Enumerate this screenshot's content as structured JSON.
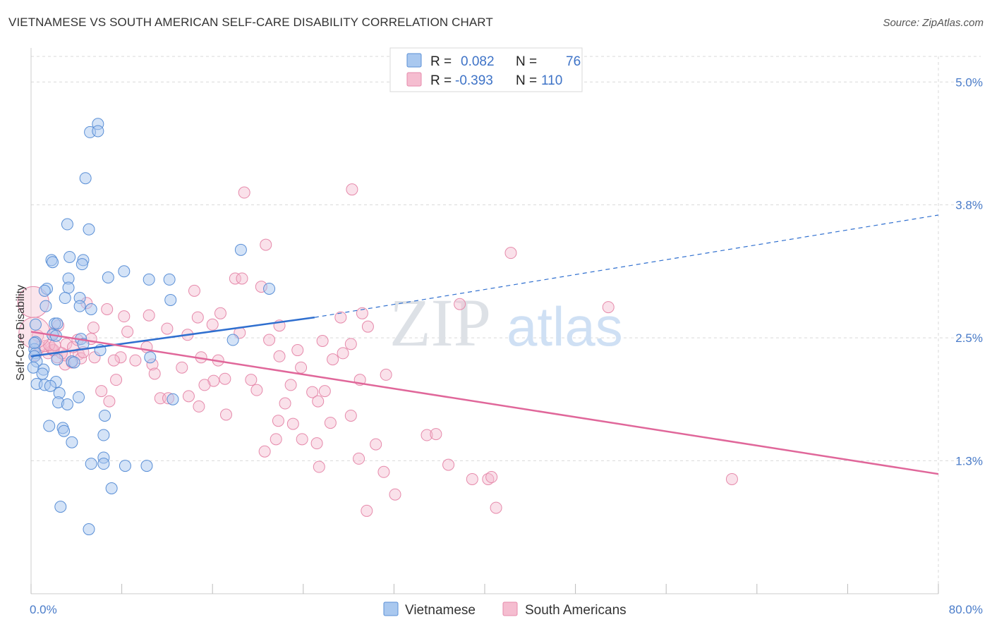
{
  "title": "VIETNAMESE VS SOUTH AMERICAN SELF-CARE DISABILITY CORRELATION CHART",
  "source": "Source: ZipAtlas.com",
  "watermark": {
    "zip": "ZIP",
    "atlas": "atlas"
  },
  "colors": {
    "blue_fill": "#a9c8ef",
    "blue_stroke": "#5a8fd6",
    "blue_line": "#2f6fcf",
    "pink_fill": "#f5bdd0",
    "pink_stroke": "#e68aab",
    "pink_line": "#e0679a",
    "grid": "#d9d9d9",
    "axis_text": "#4a7cc9"
  },
  "legend": {
    "rows": [
      {
        "r_label": "R =",
        "r_value": "0.082",
        "n_label": "N =",
        "n_value": "76"
      },
      {
        "r_label": "R =",
        "r_value": "-0.393",
        "n_label": "N =",
        "n_value": "110"
      }
    ]
  },
  "chart_data": {
    "type": "scatter",
    "title": "VIETNAMESE VS SOUTH AMERICAN SELF-CARE DISABILITY CORRELATION CHART",
    "xlabel": "",
    "ylabel": "Self-Care Disability",
    "xlim": [
      0,
      80
    ],
    "ylim": [
      0,
      5.25
    ],
    "x_tick_labels": [
      "0.0%",
      "80.0%"
    ],
    "y_ticks": [
      1.3,
      2.5,
      3.8,
      5.0
    ],
    "y_tick_labels": [
      "1.3%",
      "2.5%",
      "3.8%",
      "5.0%"
    ],
    "grid": true,
    "legend_position": "top-center",
    "series": [
      {
        "name": "Vietnamese",
        "trend": {
          "x0": 0,
          "y0": 2.32,
          "x1": 25,
          "y1": 2.7,
          "dashed_to_x": 80,
          "dashed_to_y": 3.7
        },
        "points": [
          [
            5.9,
            4.59
          ],
          [
            5.2,
            4.51
          ],
          [
            5.9,
            4.52
          ],
          [
            4.8,
            4.06
          ],
          [
            3.2,
            3.61
          ],
          [
            5.1,
            3.56
          ],
          [
            1.8,
            3.26
          ],
          [
            1.9,
            3.24
          ],
          [
            3.4,
            3.29
          ],
          [
            4.6,
            3.26
          ],
          [
            4.5,
            3.22
          ],
          [
            8.2,
            3.15
          ],
          [
            6.8,
            3.09
          ],
          [
            10.4,
            3.07
          ],
          [
            12.2,
            3.07
          ],
          [
            3.3,
            3.08
          ],
          [
            1.4,
            2.98
          ],
          [
            1.2,
            2.96
          ],
          [
            3.3,
            2.99
          ],
          [
            3.0,
            2.89
          ],
          [
            4.3,
            2.89
          ],
          [
            12.3,
            2.87
          ],
          [
            1.3,
            2.81
          ],
          [
            4.3,
            2.81
          ],
          [
            5.3,
            2.78
          ],
          [
            0.4,
            2.63
          ],
          [
            2.1,
            2.64
          ],
          [
            2.3,
            2.64
          ],
          [
            1.9,
            2.53
          ],
          [
            2.2,
            2.52
          ],
          [
            4.4,
            2.49
          ],
          [
            0.4,
            2.46
          ],
          [
            4.6,
            2.44
          ],
          [
            0.3,
            2.39
          ],
          [
            0.4,
            2.35
          ],
          [
            6.1,
            2.38
          ],
          [
            0.3,
            2.32
          ],
          [
            0.5,
            2.27
          ],
          [
            2.3,
            2.29
          ],
          [
            3.6,
            2.27
          ],
          [
            3.8,
            2.26
          ],
          [
            10.5,
            2.31
          ],
          [
            0.2,
            2.21
          ],
          [
            1.1,
            2.19
          ],
          [
            1.0,
            2.15
          ],
          [
            2.2,
            2.07
          ],
          [
            0.5,
            2.05
          ],
          [
            1.2,
            2.04
          ],
          [
            1.7,
            2.03
          ],
          [
            2.5,
            1.96
          ],
          [
            4.2,
            1.92
          ],
          [
            12.5,
            1.9
          ],
          [
            2.4,
            1.87
          ],
          [
            3.2,
            1.85
          ],
          [
            6.5,
            1.74
          ],
          [
            1.6,
            1.64
          ],
          [
            2.8,
            1.62
          ],
          [
            2.9,
            1.59
          ],
          [
            6.4,
            1.55
          ],
          [
            3.6,
            1.48
          ],
          [
            6.4,
            1.33
          ],
          [
            5.3,
            1.27
          ],
          [
            6.4,
            1.27
          ],
          [
            8.3,
            1.25
          ],
          [
            10.2,
            1.25
          ],
          [
            7.1,
            1.03
          ],
          [
            2.6,
            0.85
          ],
          [
            5.1,
            0.63
          ],
          [
            18.5,
            3.36
          ],
          [
            17.8,
            2.48
          ],
          [
            21.0,
            2.98
          ],
          [
            0.3,
            2.45
          ]
        ]
      },
      {
        "name": "South Americans",
        "trend": {
          "x0": 0,
          "y0": 2.56,
          "x1": 80,
          "y1": 1.17
        },
        "points": [
          [
            28.3,
            3.95
          ],
          [
            18.8,
            3.92
          ],
          [
            20.7,
            3.41
          ],
          [
            42.3,
            3.33
          ],
          [
            18.0,
            3.08
          ],
          [
            18.6,
            3.08
          ],
          [
            14.4,
            2.96
          ],
          [
            20.3,
            3.0
          ],
          [
            37.8,
            2.83
          ],
          [
            50.9,
            2.8
          ],
          [
            6.7,
            2.78
          ],
          [
            4.9,
            2.84
          ],
          [
            8.2,
            2.71
          ],
          [
            10.4,
            2.72
          ],
          [
            14.7,
            2.7
          ],
          [
            16.7,
            2.74
          ],
          [
            27.3,
            2.7
          ],
          [
            29.2,
            2.74
          ],
          [
            16.0,
            2.63
          ],
          [
            21.9,
            2.62
          ],
          [
            29.7,
            2.61
          ],
          [
            12.0,
            2.59
          ],
          [
            8.5,
            2.56
          ],
          [
            13.8,
            2.53
          ],
          [
            18.4,
            2.55
          ],
          [
            21.0,
            2.48
          ],
          [
            25.7,
            2.47
          ],
          [
            28.2,
            2.44
          ],
          [
            3.1,
            2.44
          ],
          [
            10.2,
            2.41
          ],
          [
            23.5,
            2.38
          ],
          [
            27.5,
            2.35
          ],
          [
            4.2,
            2.34
          ],
          [
            2.3,
            2.31
          ],
          [
            5.6,
            2.31
          ],
          [
            7.9,
            2.31
          ],
          [
            15.0,
            2.31
          ],
          [
            21.9,
            2.32
          ],
          [
            7.3,
            2.28
          ],
          [
            9.2,
            2.28
          ],
          [
            16.5,
            2.28
          ],
          [
            26.6,
            2.29
          ],
          [
            3.0,
            2.24
          ],
          [
            10.7,
            2.24
          ],
          [
            13.3,
            2.21
          ],
          [
            23.8,
            2.21
          ],
          [
            10.9,
            2.15
          ],
          [
            31.3,
            2.14
          ],
          [
            17.1,
            2.1
          ],
          [
            19.4,
            2.09
          ],
          [
            7.5,
            2.09
          ],
          [
            16.1,
            2.08
          ],
          [
            29.0,
            2.09
          ],
          [
            15.3,
            2.04
          ],
          [
            22.9,
            2.04
          ],
          [
            6.2,
            1.98
          ],
          [
            19.9,
            1.99
          ],
          [
            24.8,
            1.97
          ],
          [
            25.9,
            1.98
          ],
          [
            13.9,
            1.93
          ],
          [
            11.4,
            1.91
          ],
          [
            12.1,
            1.91
          ],
          [
            25.3,
            1.88
          ],
          [
            6.9,
            1.88
          ],
          [
            22.4,
            1.86
          ],
          [
            14.8,
            1.83
          ],
          [
            17.2,
            1.75
          ],
          [
            28.2,
            1.74
          ],
          [
            21.8,
            1.69
          ],
          [
            23.1,
            1.66
          ],
          [
            26.4,
            1.67
          ],
          [
            34.9,
            1.55
          ],
          [
            35.7,
            1.56
          ],
          [
            23.9,
            1.51
          ],
          [
            21.6,
            1.51
          ],
          [
            25.2,
            1.47
          ],
          [
            30.4,
            1.46
          ],
          [
            20.6,
            1.39
          ],
          [
            28.9,
            1.32
          ],
          [
            25.4,
            1.24
          ],
          [
            36.8,
            1.26
          ],
          [
            31.1,
            1.19
          ],
          [
            38.9,
            1.12
          ],
          [
            40.3,
            1.12
          ],
          [
            40.6,
            1.14
          ],
          [
            61.8,
            1.12
          ],
          [
            32.1,
            0.97
          ],
          [
            41.0,
            0.84
          ],
          [
            29.6,
            0.81
          ],
          [
            2.0,
            2.55
          ],
          [
            1.5,
            2.35
          ],
          [
            3.0,
            2.33
          ],
          [
            2.7,
            2.35
          ],
          [
            1.8,
            2.4
          ],
          [
            4.4,
            2.3
          ],
          [
            1.9,
            2.38
          ],
          [
            3.6,
            2.26
          ],
          [
            5.5,
            2.6
          ],
          [
            2.4,
            2.62
          ],
          [
            0.8,
            2.41
          ],
          [
            2.0,
            2.38
          ],
          [
            1.2,
            2.42
          ],
          [
            4.6,
            2.36
          ],
          [
            3.7,
            2.41
          ],
          [
            1.6,
            2.43
          ],
          [
            0.4,
            2.33
          ],
          [
            2.1,
            2.43
          ],
          [
            0.6,
            2.52
          ],
          [
            5.3,
            2.49
          ],
          [
            4.1,
            2.48
          ]
        ],
        "large_points": [
          [
            0.2,
            2.85
          ],
          [
            0.3,
            2.55
          ]
        ]
      }
    ]
  },
  "bottom_legend": [
    {
      "label": "Vietnamese"
    },
    {
      "label": "South Americans"
    }
  ]
}
